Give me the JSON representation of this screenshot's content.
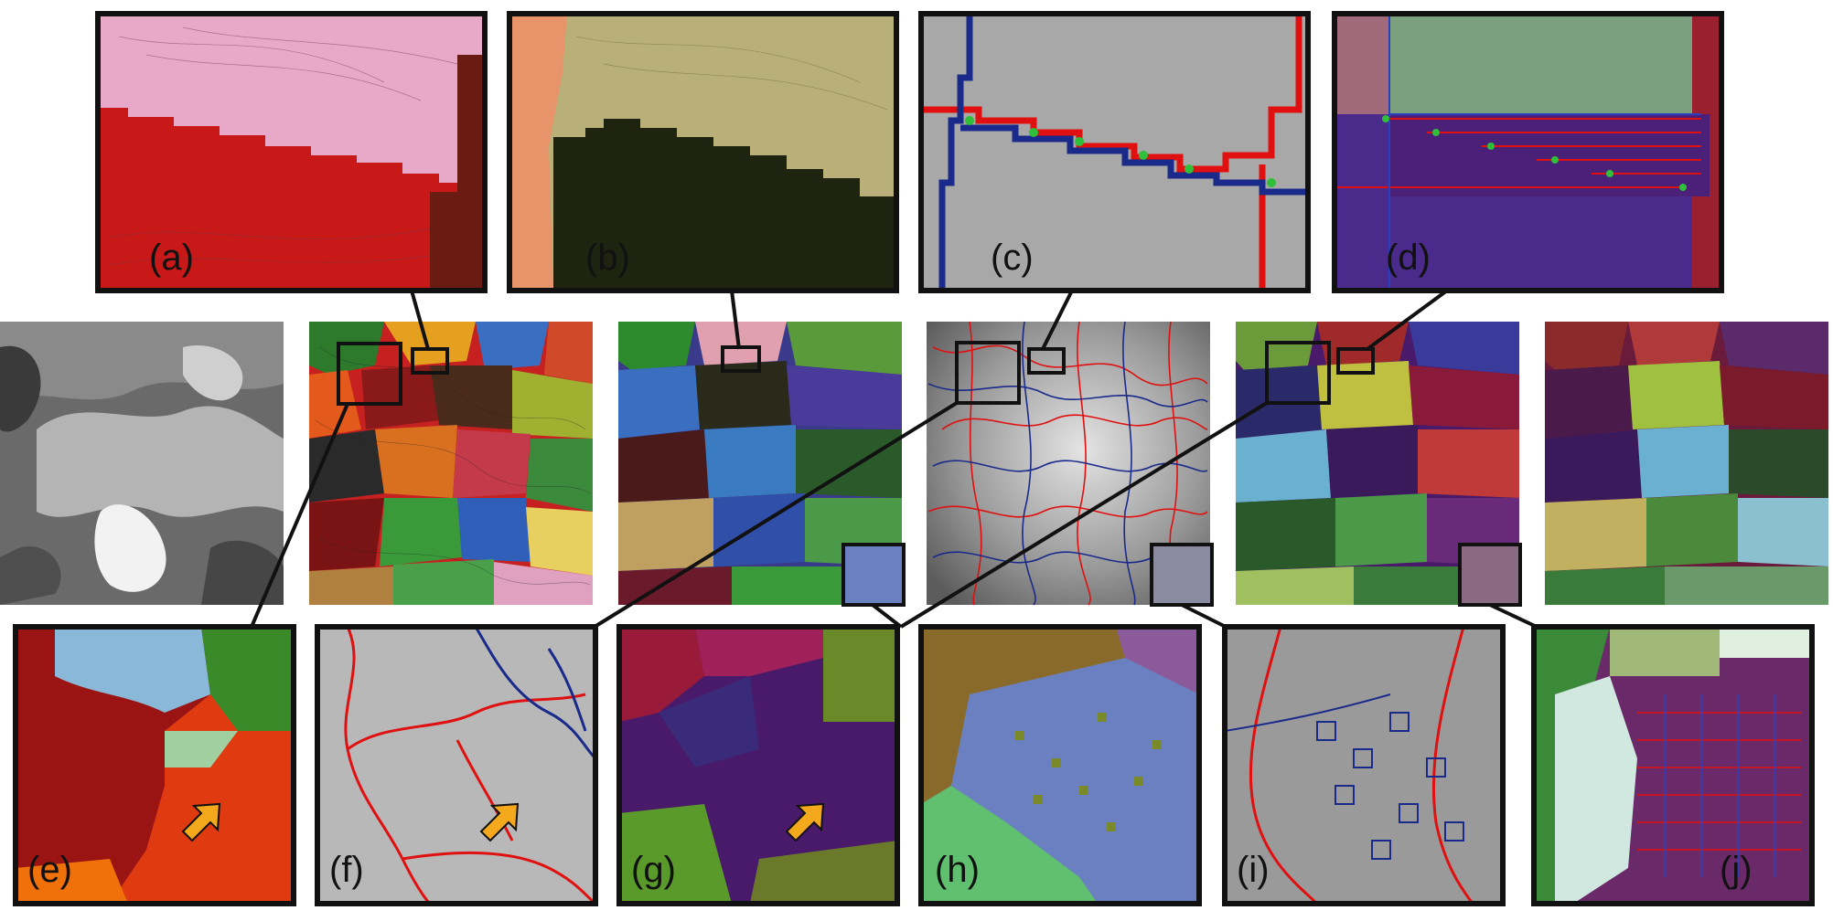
{
  "panels": {
    "a": {
      "label": "(a)"
    },
    "b": {
      "label": "(b)"
    },
    "c": {
      "label": "(c)"
    },
    "d": {
      "label": "(d)"
    },
    "e": {
      "label": "(e)"
    },
    "f": {
      "label": "(f)"
    },
    "g": {
      "label": "(g)"
    },
    "h": {
      "label": "(h)"
    },
    "i": {
      "label": "(i)"
    },
    "j": {
      "label": "(j)"
    }
  },
  "colors": {
    "frame": "#111111",
    "boundary_red": "#e01010",
    "boundary_blue": "#1a2a8a",
    "arrow_fill": "#f4a81c",
    "node_green": "#2fbf3a"
  }
}
